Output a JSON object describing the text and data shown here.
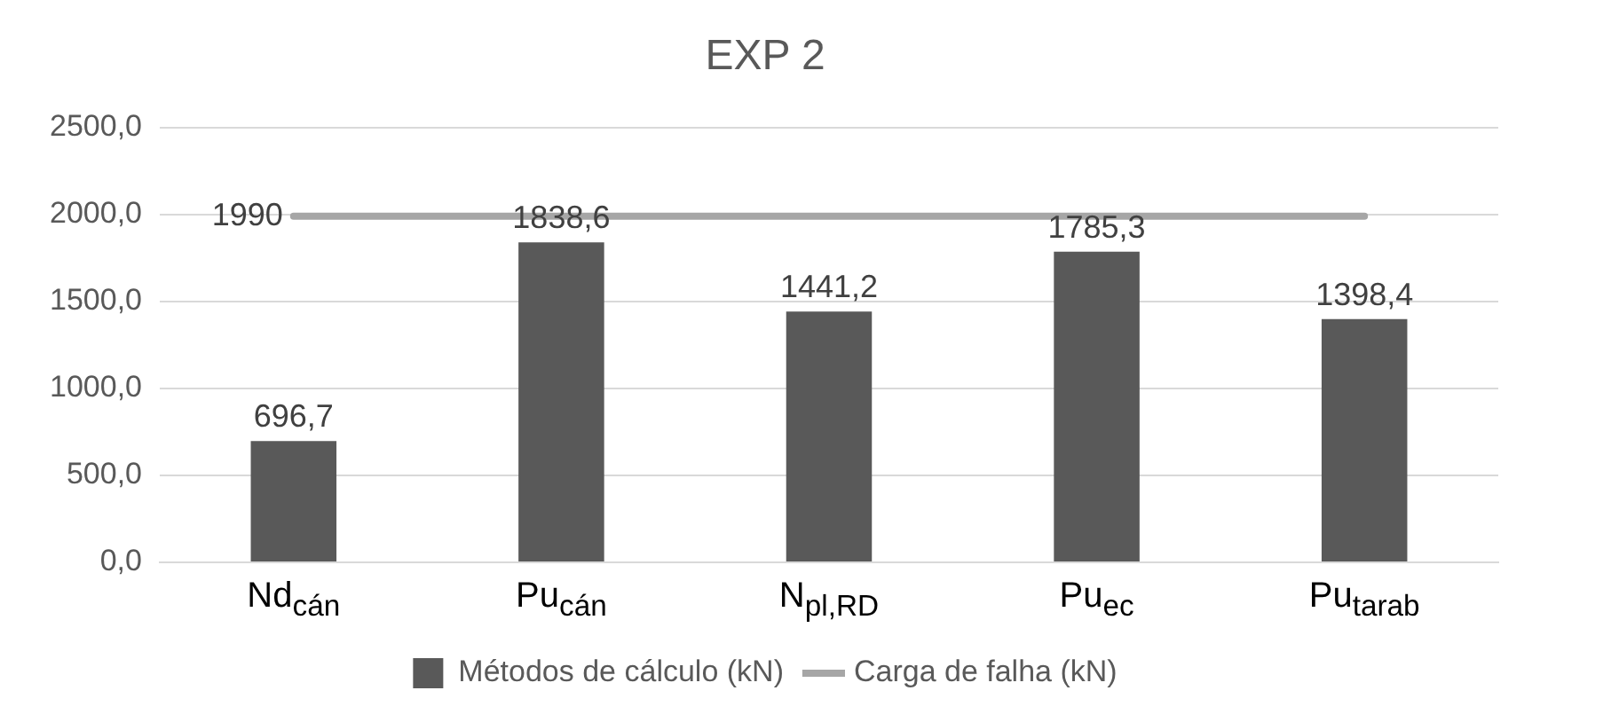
{
  "chart_data": {
    "type": "bar",
    "title": "EXP 2",
    "categories": [
      "Nd$_{cán}$",
      "Pu$_{cán}$",
      "N$_{pl,RD}$",
      "Pu$_{ec}$",
      "Pu$_{tarab}$"
    ],
    "series": [
      {
        "name": "Métodos de cálculo (kN)",
        "color": "#595959",
        "values": [
          696.7,
          1838.6,
          1441.2,
          1785.3,
          1398.4
        ],
        "value_labels": [
          "696,7",
          "1838,6",
          "1441,2",
          "1785,3",
          "1398,4"
        ]
      },
      {
        "name": "Carga de falha (kN)",
        "type": "line",
        "color": "#a6a6a6",
        "values": [
          1990,
          1990,
          1990,
          1990,
          1990
        ],
        "value_labels": [
          "1990",
          null,
          null,
          null,
          null
        ]
      }
    ],
    "ylim": [
      0,
      2500
    ],
    "yticks": [
      {
        "value": 0,
        "label": "0,0"
      },
      {
        "value": 500,
        "label": "500,0"
      },
      {
        "value": 1000,
        "label": "1000,0"
      },
      {
        "value": 1500,
        "label": "1500,0"
      },
      {
        "value": 2000,
        "label": "2000,0"
      },
      {
        "value": 2500,
        "label": "2500,0"
      }
    ],
    "grid": "y",
    "legend": "bottom",
    "marker": "none"
  }
}
